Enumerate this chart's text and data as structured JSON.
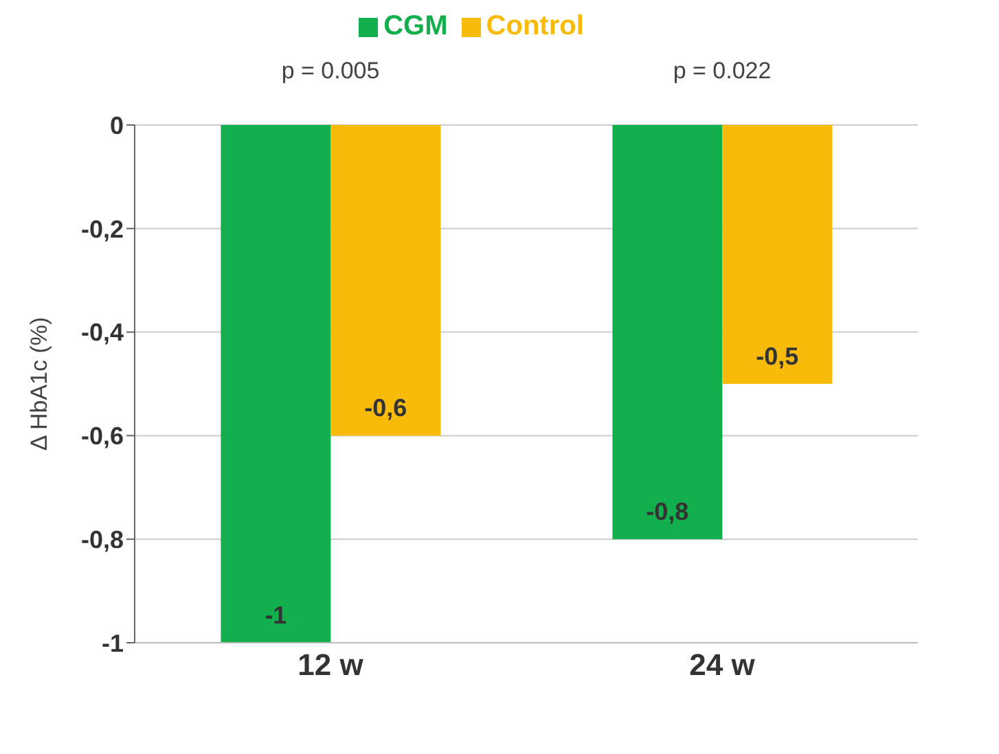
{
  "chart_data": {
    "type": "bar",
    "ylabel": "Δ HbA1c (%)",
    "categories": [
      "12 w",
      "24 w"
    ],
    "series": [
      {
        "name": "CGM",
        "color": "#12b04c",
        "values": [
          -1,
          -0.8
        ],
        "value_labels": [
          "-1",
          "-0,8"
        ]
      },
      {
        "name": "Control",
        "color": "#f8bb0a",
        "values": [
          -0.6,
          -0.5
        ],
        "value_labels": [
          "-0,6",
          "-0,5"
        ]
      }
    ],
    "ylim": [
      -1,
      0
    ],
    "yticks": [
      {
        "value": -1,
        "label": "-1"
      },
      {
        "value": -0.8,
        "label": "-0,8"
      },
      {
        "value": -0.6,
        "label": "-0,6"
      },
      {
        "value": -0.4,
        "label": "-0,4"
      },
      {
        "value": -0.2,
        "label": "-0,2"
      },
      {
        "value": 0,
        "label": "0"
      }
    ],
    "grid": "y",
    "legend": "top",
    "annotations": [
      "p = 0.005",
      "p = 0.022"
    ]
  }
}
